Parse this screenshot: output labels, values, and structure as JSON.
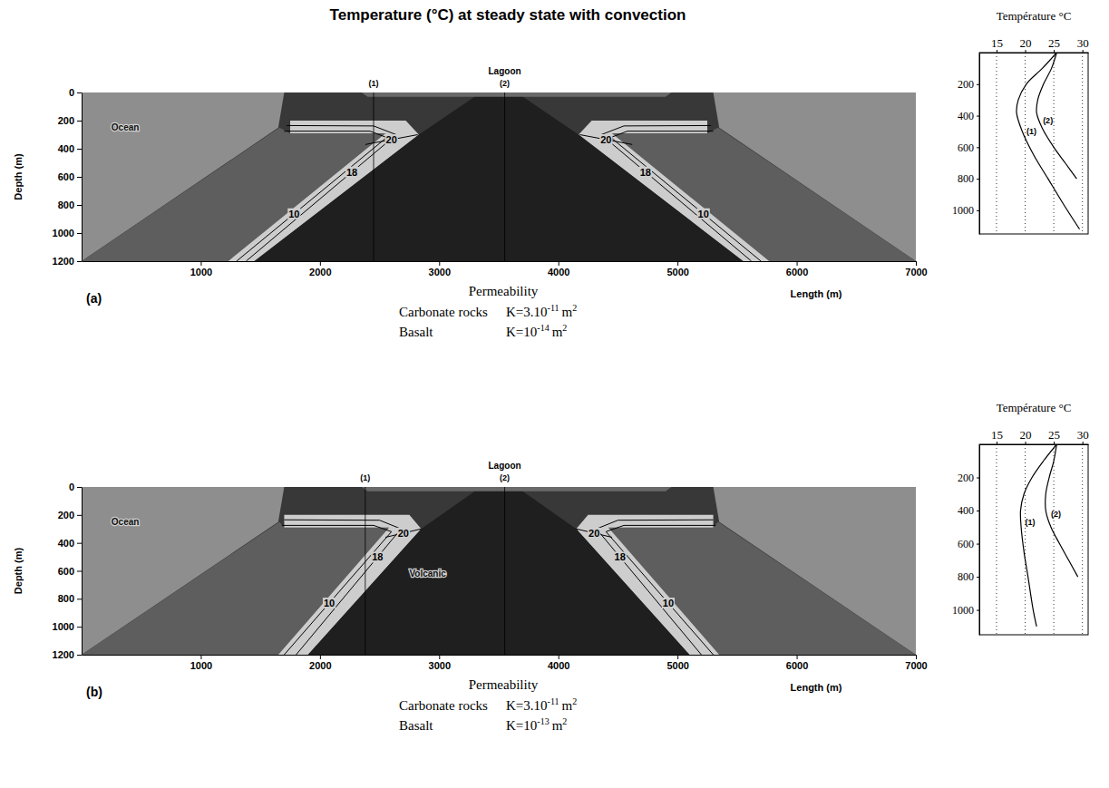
{
  "title": "Temperature (°C) at steady state with convection",
  "chart_data": [
    {
      "type": "contour",
      "panel": "(a)",
      "xlabel": "Length (m)",
      "ylabel": "Depth (m)",
      "xlim": [
        0,
        7000
      ],
      "ylim": [
        0,
        1200
      ],
      "xticks": [
        1000,
        2000,
        3000,
        4000,
        5000,
        6000,
        7000
      ],
      "yticks": [
        0,
        200,
        400,
        600,
        800,
        1000,
        1200
      ],
      "header": {
        "text": "Lagoon",
        "x": 3550
      },
      "profiles": [
        {
          "name": "(1)",
          "x": 2450
        },
        {
          "name": "(2)",
          "x": 3550
        }
      ],
      "regions": [
        {
          "color": "#8e8e8e",
          "x": [
            0,
            7000,
            7000,
            0
          ],
          "y": [
            0,
            0,
            1200,
            1200
          ]
        },
        {
          "color": "#383838",
          "x": [
            0,
            1650,
            1700,
            5300,
            5350,
            7000
          ],
          "y": [
            1200,
            250,
            0,
            0,
            250,
            1200
          ]
        },
        {
          "color": "#5e5e5e",
          "x": [
            1660,
            1750,
            2550,
            1230,
            0
          ],
          "y": [
            250,
            290,
            290,
            1200,
            1200
          ]
        },
        {
          "color": "#5e5e5e",
          "x": [
            5340,
            5250,
            4450,
            5770,
            7000
          ],
          "y": [
            250,
            290,
            290,
            1200,
            1200
          ]
        },
        {
          "color": "#cdcdcd",
          "x": [
            1750,
            2720,
            2830,
            1450,
            1230,
            2550,
            1750
          ],
          "y": [
            200,
            200,
            300,
            1200,
            1200,
            290,
            290
          ]
        },
        {
          "color": "#cdcdcd",
          "x": [
            5250,
            4280,
            4170,
            5550,
            5770,
            4450,
            5250
          ],
          "y": [
            200,
            200,
            300,
            1200,
            1200,
            290,
            290
          ]
        },
        {
          "color": "#1f1f1f",
          "x": [
            3350,
            3650,
            4170,
            5550,
            1450,
            2830
          ],
          "y": [
            0,
            0,
            300,
            1200,
            1200,
            300
          ]
        },
        {
          "color": "#6a6a6a",
          "x": [
            2350,
            4950,
            4900,
            2400
          ],
          "y": [
            0,
            0,
            30,
            30
          ]
        }
      ],
      "contours": [
        {
          "name": "10",
          "x": [
            1700,
            2420,
            2560,
            1300
          ],
          "y": [
            275,
            275,
            320,
            1200
          ]
        },
        {
          "name": "18",
          "x": [
            1720,
            2450,
            2640,
            1380
          ],
          "y": [
            235,
            238,
            300,
            1200
          ]
        },
        {
          "name": "20",
          "x": [
            2380,
            2820
          ],
          "y": [
            370,
            300
          ]
        },
        {
          "name": "10",
          "x": [
            5300,
            4580,
            4440,
            5700
          ],
          "y": [
            275,
            275,
            320,
            1200
          ]
        },
        {
          "name": "18",
          "x": [
            5280,
            4550,
            4360,
            5620
          ],
          "y": [
            235,
            238,
            300,
            1200
          ]
        },
        {
          "name": "20",
          "x": [
            4620,
            4180
          ],
          "y": [
            370,
            300
          ]
        }
      ],
      "annotations": [
        {
          "text": "Ocean",
          "x": 250,
          "y": 270
        }
      ],
      "permeability": {
        "title": "Permeability",
        "rows": [
          {
            "rock": "Carbonate rocks",
            "k": "K=3.10",
            "exponent": "-11",
            "unit": "m",
            "unit_exponent": "2"
          },
          {
            "rock": "Basalt",
            "k": "K=10",
            "exponent": "-14",
            "unit": "m",
            "unit_exponent": "2"
          }
        ]
      }
    },
    {
      "type": "line",
      "xlabel": "Température °C",
      "xlim": [
        12,
        31
      ],
      "xticks": [
        15,
        20,
        25,
        30
      ],
      "ylim": [
        0,
        1150
      ],
      "yticks": [
        200,
        400,
        600,
        800,
        1000
      ],
      "grid": true,
      "series": [
        {
          "name": "(1)",
          "x": [
            25.5,
            23,
            20.2,
            18.8,
            18.5,
            19.5,
            21.5,
            24,
            26.5,
            29.5
          ],
          "values": [
            0,
            100,
            200,
            300,
            380,
            500,
            650,
            800,
            950,
            1120
          ]
        },
        {
          "name": "(2)",
          "x": [
            25.5,
            24.6,
            23.2,
            22.2,
            22,
            23,
            25,
            27,
            29
          ],
          "values": [
            0,
            100,
            200,
            300,
            380,
            480,
            600,
            700,
            800
          ]
        }
      ]
    },
    {
      "type": "contour",
      "panel": "(b)",
      "xlabel": "Length (m)",
      "ylabel": "Depth (m)",
      "xlim": [
        0,
        7000
      ],
      "ylim": [
        0,
        1200
      ],
      "xticks": [
        1000,
        2000,
        3000,
        4000,
        5000,
        6000,
        7000
      ],
      "yticks": [
        0,
        200,
        400,
        600,
        800,
        1000,
        1200
      ],
      "header": {
        "text": "Lagoon",
        "x": 3550
      },
      "profiles": [
        {
          "name": "(1)",
          "x": 2380
        },
        {
          "name": "(2)",
          "x": 3550
        }
      ],
      "regions": [
        {
          "color": "#8e8e8e",
          "x": [
            0,
            7000,
            7000,
            0
          ],
          "y": [
            0,
            0,
            1200,
            1200
          ]
        },
        {
          "color": "#383838",
          "x": [
            0,
            1650,
            1700,
            5300,
            5350,
            7000
          ],
          "y": [
            1200,
            250,
            0,
            0,
            250,
            1200
          ]
        },
        {
          "color": "#5e5e5e",
          "x": [
            1660,
            1700,
            2580,
            1650,
            0
          ],
          "y": [
            250,
            290,
            290,
            1200,
            1200
          ]
        },
        {
          "color": "#5e5e5e",
          "x": [
            5340,
            5300,
            4420,
            5350,
            7000
          ],
          "y": [
            250,
            290,
            290,
            1200,
            1200
          ]
        },
        {
          "color": "#cdcdcd",
          "x": [
            1700,
            2750,
            2850,
            1900,
            1650,
            2580,
            1700
          ],
          "y": [
            200,
            200,
            300,
            1200,
            1200,
            290,
            290
          ]
        },
        {
          "color": "#cdcdcd",
          "x": [
            5300,
            4250,
            4150,
            5100,
            5350,
            4420,
            5300
          ],
          "y": [
            200,
            200,
            300,
            1200,
            1200,
            290,
            290
          ]
        },
        {
          "color": "#1f1f1f",
          "x": [
            3350,
            3650,
            4150,
            5100,
            1900,
            2850
          ],
          "y": [
            0,
            0,
            300,
            1200,
            1200,
            300
          ]
        },
        {
          "color": "#6a6a6a",
          "x": [
            2350,
            4950,
            4900,
            2400
          ],
          "y": [
            0,
            0,
            30,
            30
          ]
        }
      ],
      "contours": [
        {
          "name": "10",
          "x": [
            1680,
            2450,
            2600,
            1700
          ],
          "y": [
            275,
            275,
            320,
            1200
          ]
        },
        {
          "name": "18",
          "x": [
            1700,
            2500,
            2680,
            1800
          ],
          "y": [
            235,
            238,
            300,
            1200
          ]
        },
        {
          "name": "20",
          "x": [
            2550,
            2850
          ],
          "y": [
            360,
            300
          ]
        },
        {
          "name": "10",
          "x": [
            5320,
            4550,
            4400,
            5300
          ],
          "y": [
            275,
            275,
            320,
            1200
          ]
        },
        {
          "name": "18",
          "x": [
            5300,
            4500,
            4320,
            5200
          ],
          "y": [
            235,
            238,
            300,
            1200
          ]
        },
        {
          "name": "20",
          "x": [
            4450,
            4150
          ],
          "y": [
            360,
            300
          ]
        }
      ],
      "annotations": [
        {
          "text": "Ocean",
          "x": 250,
          "y": 270
        },
        {
          "text": "Volcanic",
          "x": 2750,
          "y": 640
        }
      ],
      "permeability": {
        "title": "Permeability",
        "rows": [
          {
            "rock": "Carbonate rocks",
            "k": "K=3.10",
            "exponent": "-11",
            "unit": "m",
            "unit_exponent": "2"
          },
          {
            "rock": "Basalt",
            "k": "K=10",
            "exponent": "-13",
            "unit": "m",
            "unit_exponent": "2"
          }
        ]
      }
    },
    {
      "type": "line",
      "xlabel": "Température °C",
      "xlim": [
        12,
        31
      ],
      "xticks": [
        15,
        20,
        25,
        30
      ],
      "ylim": [
        0,
        1150
      ],
      "yticks": [
        200,
        400,
        600,
        800,
        1000
      ],
      "grid": true,
      "series": [
        {
          "name": "(1)",
          "x": [
            25.5,
            23.2,
            21.2,
            19.8,
            19.2,
            19.3,
            19.8,
            20.5,
            21.4,
            22
          ],
          "values": [
            0,
            100,
            200,
            300,
            400,
            500,
            650,
            800,
            1000,
            1100
          ]
        },
        {
          "name": "(2)",
          "x": [
            25.5,
            25,
            24.2,
            23.6,
            23.6,
            24.5,
            26,
            27.6,
            29.2
          ],
          "values": [
            0,
            100,
            200,
            300,
            400,
            500,
            600,
            700,
            800
          ]
        }
      ]
    }
  ]
}
